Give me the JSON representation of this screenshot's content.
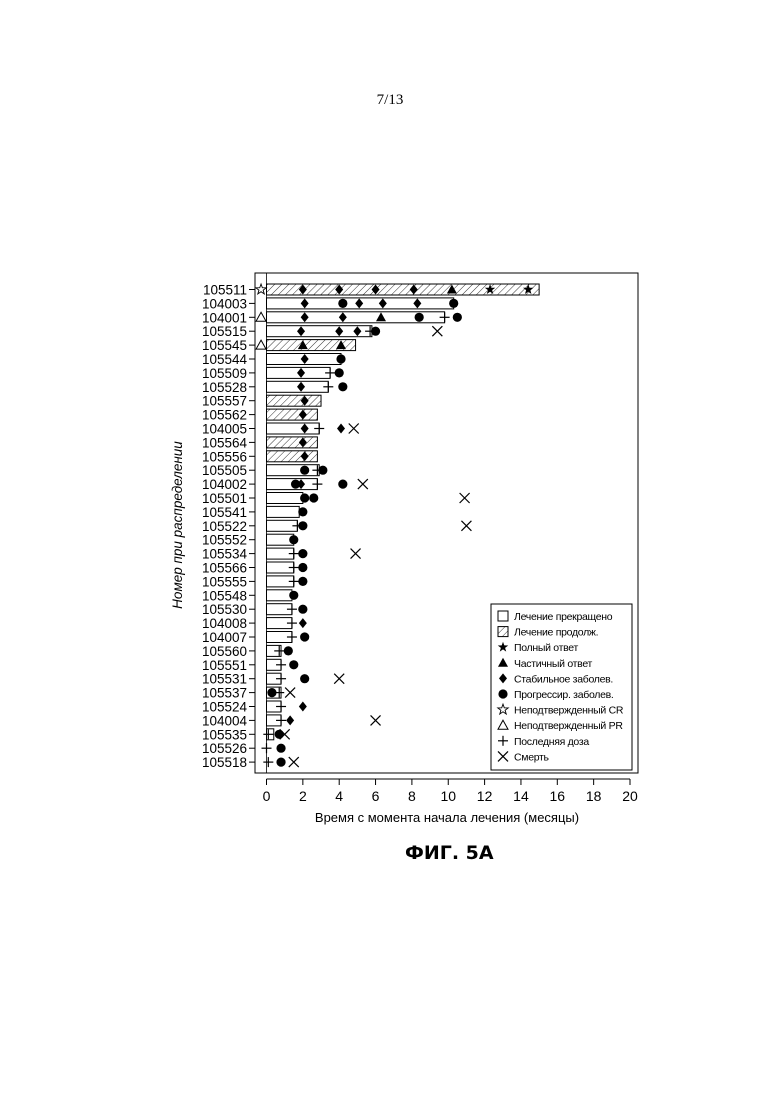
{
  "page": {
    "number": "7/13",
    "caption": "ФИГ. 5А"
  },
  "chart_data": {
    "type": "bar",
    "orientation": "horizontal",
    "xlabel": "Время с момента начала лечения (месяцы)",
    "ylabel": "Номер при распределении",
    "xlim": [
      0,
      20
    ],
    "xticks": [
      0,
      2,
      4,
      6,
      8,
      10,
      12,
      14,
      16,
      18,
      20
    ],
    "grid": false,
    "legend_position": "bottom-right",
    "legend": [
      {
        "key": "discontinued",
        "label": "Лечение прекращено"
      },
      {
        "key": "ongoing",
        "label": "Лечение продолж."
      },
      {
        "key": "cr",
        "label": "Полный ответ"
      },
      {
        "key": "pr",
        "label": "Частичный ответ"
      },
      {
        "key": "sd",
        "label": "Стабильное заболев."
      },
      {
        "key": "pd",
        "label": "Прогрессир. заболев."
      },
      {
        "key": "ucr",
        "label": "Неподтвержденный CR"
      },
      {
        "key": "upr",
        "label": "Неподтвержденный PR"
      },
      {
        "key": "lastdose",
        "label": "Последняя доза"
      },
      {
        "key": "death",
        "label": "Смерть"
      }
    ],
    "patients": [
      {
        "id": "105511",
        "duration": 15.0,
        "ongoing": true,
        "markers": [
          {
            "t": "ucr",
            "x": -0.3
          },
          {
            "t": "sd",
            "x": 2.0
          },
          {
            "t": "sd",
            "x": 4.0
          },
          {
            "t": "sd",
            "x": 6.0
          },
          {
            "t": "sd",
            "x": 8.1
          },
          {
            "t": "pr",
            "x": 10.2
          },
          {
            "t": "cr",
            "x": 12.3
          },
          {
            "t": "cr",
            "x": 14.4
          }
        ]
      },
      {
        "id": "104003",
        "duration": 10.3,
        "ongoing": false,
        "markers": [
          {
            "t": "sd",
            "x": 2.1
          },
          {
            "t": "pd",
            "x": 4.2
          },
          {
            "t": "sd",
            "x": 5.1
          },
          {
            "t": "sd",
            "x": 6.4
          },
          {
            "t": "sd",
            "x": 8.3
          },
          {
            "t": "pd",
            "x": 10.3
          }
        ]
      },
      {
        "id": "104001",
        "duration": 9.8,
        "ongoing": false,
        "markers": [
          {
            "t": "upr",
            "x": -0.3
          },
          {
            "t": "sd",
            "x": 2.1
          },
          {
            "t": "sd",
            "x": 4.2
          },
          {
            "t": "pr",
            "x": 6.3
          },
          {
            "t": "pd",
            "x": 8.4
          },
          {
            "t": "lastdose",
            "x": 9.8
          },
          {
            "t": "pd",
            "x": 10.5
          }
        ]
      },
      {
        "id": "105515",
        "duration": 5.8,
        "ongoing": false,
        "markers": [
          {
            "t": "sd",
            "x": 1.9
          },
          {
            "t": "sd",
            "x": 4.0
          },
          {
            "t": "sd",
            "x": 5.0
          },
          {
            "t": "lastdose",
            "x": 5.7
          },
          {
            "t": "pd",
            "x": 6.0
          },
          {
            "t": "death",
            "x": 9.4
          }
        ]
      },
      {
        "id": "105545",
        "duration": 4.9,
        "ongoing": true,
        "markers": [
          {
            "t": "upr",
            "x": -0.3
          },
          {
            "t": "pr",
            "x": 2.0
          },
          {
            "t": "pr",
            "x": 4.1
          }
        ]
      },
      {
        "id": "105544",
        "duration": 4.1,
        "ongoing": false,
        "markers": [
          {
            "t": "sd",
            "x": 2.1
          },
          {
            "t": "pd",
            "x": 4.1
          }
        ]
      },
      {
        "id": "105509",
        "duration": 3.5,
        "ongoing": false,
        "markers": [
          {
            "t": "sd",
            "x": 1.9
          },
          {
            "t": "lastdose",
            "x": 3.5
          },
          {
            "t": "pd",
            "x": 4.0
          }
        ]
      },
      {
        "id": "105528",
        "duration": 3.4,
        "ongoing": false,
        "markers": [
          {
            "t": "sd",
            "x": 1.9
          },
          {
            "t": "lastdose",
            "x": 3.4
          },
          {
            "t": "pd",
            "x": 4.2
          }
        ]
      },
      {
        "id": "105557",
        "duration": 3.0,
        "ongoing": true,
        "markers": [
          {
            "t": "sd",
            "x": 2.1
          }
        ]
      },
      {
        "id": "105562",
        "duration": 2.8,
        "ongoing": true,
        "markers": [
          {
            "t": "sd",
            "x": 2.0
          }
        ]
      },
      {
        "id": "104005",
        "duration": 2.9,
        "ongoing": false,
        "markers": [
          {
            "t": "sd",
            "x": 2.1
          },
          {
            "t": "lastdose",
            "x": 2.9
          },
          {
            "t": "sd",
            "x": 4.1
          },
          {
            "t": "death",
            "x": 4.8
          }
        ]
      },
      {
        "id": "105564",
        "duration": 2.8,
        "ongoing": true,
        "markers": [
          {
            "t": "sd",
            "x": 2.0
          }
        ]
      },
      {
        "id": "105556",
        "duration": 2.8,
        "ongoing": true,
        "markers": [
          {
            "t": "sd",
            "x": 2.1
          }
        ]
      },
      {
        "id": "105505",
        "duration": 2.9,
        "ongoing": false,
        "markers": [
          {
            "t": "pd",
            "x": 2.1
          },
          {
            "t": "lastdose",
            "x": 2.8
          },
          {
            "t": "pd",
            "x": 3.1
          }
        ]
      },
      {
        "id": "104002",
        "duration": 2.8,
        "ongoing": false,
        "markers": [
          {
            "t": "pd",
            "x": 1.6
          },
          {
            "t": "sd",
            "x": 1.9
          },
          {
            "t": "lastdose",
            "x": 2.8
          },
          {
            "t": "pd",
            "x": 4.2
          },
          {
            "t": "death",
            "x": 5.3
          }
        ]
      },
      {
        "id": "105501",
        "duration": 2.0,
        "ongoing": false,
        "markers": [
          {
            "t": "pd",
            "x": 2.1
          },
          {
            "t": "pd",
            "x": 2.6
          },
          {
            "t": "death",
            "x": 10.9
          }
        ]
      },
      {
        "id": "105541",
        "duration": 1.8,
        "ongoing": false,
        "markers": [
          {
            "t": "pd",
            "x": 2.0
          }
        ]
      },
      {
        "id": "105522",
        "duration": 1.7,
        "ongoing": false,
        "markers": [
          {
            "t": "lastdose",
            "x": 1.7
          },
          {
            "t": "pd",
            "x": 2.0
          },
          {
            "t": "death",
            "x": 11.0
          }
        ]
      },
      {
        "id": "105552",
        "duration": 1.5,
        "ongoing": false,
        "markers": [
          {
            "t": "pd",
            "x": 1.5
          }
        ]
      },
      {
        "id": "105534",
        "duration": 1.5,
        "ongoing": false,
        "markers": [
          {
            "t": "lastdose",
            "x": 1.5
          },
          {
            "t": "pd",
            "x": 2.0
          },
          {
            "t": "death",
            "x": 4.9
          }
        ]
      },
      {
        "id": "105566",
        "duration": 1.5,
        "ongoing": false,
        "markers": [
          {
            "t": "lastdose",
            "x": 1.5
          },
          {
            "t": "pd",
            "x": 2.0
          }
        ]
      },
      {
        "id": "105555",
        "duration": 1.5,
        "ongoing": false,
        "markers": [
          {
            "t": "lastdose",
            "x": 1.5
          },
          {
            "t": "pd",
            "x": 2.0
          }
        ]
      },
      {
        "id": "105548",
        "duration": 1.4,
        "ongoing": false,
        "markers": [
          {
            "t": "pd",
            "x": 1.5
          }
        ]
      },
      {
        "id": "105530",
        "duration": 1.4,
        "ongoing": false,
        "markers": [
          {
            "t": "lastdose",
            "x": 1.4
          },
          {
            "t": "pd",
            "x": 2.0
          }
        ]
      },
      {
        "id": "104008",
        "duration": 1.4,
        "ongoing": false,
        "markers": [
          {
            "t": "lastdose",
            "x": 1.4
          },
          {
            "t": "sd",
            "x": 2.0
          }
        ]
      },
      {
        "id": "104007",
        "duration": 1.4,
        "ongoing": false,
        "markers": [
          {
            "t": "lastdose",
            "x": 1.4
          },
          {
            "t": "pd",
            "x": 2.1
          }
        ]
      },
      {
        "id": "105560",
        "duration": 0.8,
        "ongoing": false,
        "markers": [
          {
            "t": "lastdose",
            "x": 0.7
          },
          {
            "t": "pd",
            "x": 1.2
          }
        ]
      },
      {
        "id": "105551",
        "duration": 0.8,
        "ongoing": false,
        "markers": [
          {
            "t": "lastdose",
            "x": 0.8
          },
          {
            "t": "pd",
            "x": 1.5
          }
        ]
      },
      {
        "id": "105531",
        "duration": 0.8,
        "ongoing": false,
        "markers": [
          {
            "t": "lastdose",
            "x": 0.8
          },
          {
            "t": "pd",
            "x": 2.1
          },
          {
            "t": "death",
            "x": 4.0
          }
        ]
      },
      {
        "id": "105537",
        "duration": 0.8,
        "ongoing": false,
        "markers": [
          {
            "t": "pd",
            "x": 0.3
          },
          {
            "t": "lastdose",
            "x": 0.7
          },
          {
            "t": "death",
            "x": 1.3
          }
        ]
      },
      {
        "id": "105524",
        "duration": 0.8,
        "ongoing": false,
        "markers": [
          {
            "t": "lastdose",
            "x": 0.8
          },
          {
            "t": "sd",
            "x": 2.0
          }
        ]
      },
      {
        "id": "104004",
        "duration": 0.8,
        "ongoing": false,
        "markers": [
          {
            "t": "lastdose",
            "x": 0.8
          },
          {
            "t": "sd",
            "x": 1.3
          },
          {
            "t": "death",
            "x": 6.0
          }
        ]
      },
      {
        "id": "105535",
        "duration": 0.4,
        "ongoing": false,
        "markers": [
          {
            "t": "lastdose",
            "x": 0.1
          },
          {
            "t": "pd",
            "x": 0.7
          },
          {
            "t": "death",
            "x": 1.0
          }
        ]
      },
      {
        "id": "105526",
        "duration": 0.0,
        "ongoing": false,
        "markers": [
          {
            "t": "lastdose",
            "x": 0.0
          },
          {
            "t": "pd",
            "x": 0.8
          }
        ]
      },
      {
        "id": "105518",
        "duration": 0.0,
        "ongoing": false,
        "markers": [
          {
            "t": "lastdose",
            "x": 0.1
          },
          {
            "t": "pd",
            "x": 0.8
          },
          {
            "t": "death",
            "x": 1.5
          }
        ]
      }
    ]
  }
}
